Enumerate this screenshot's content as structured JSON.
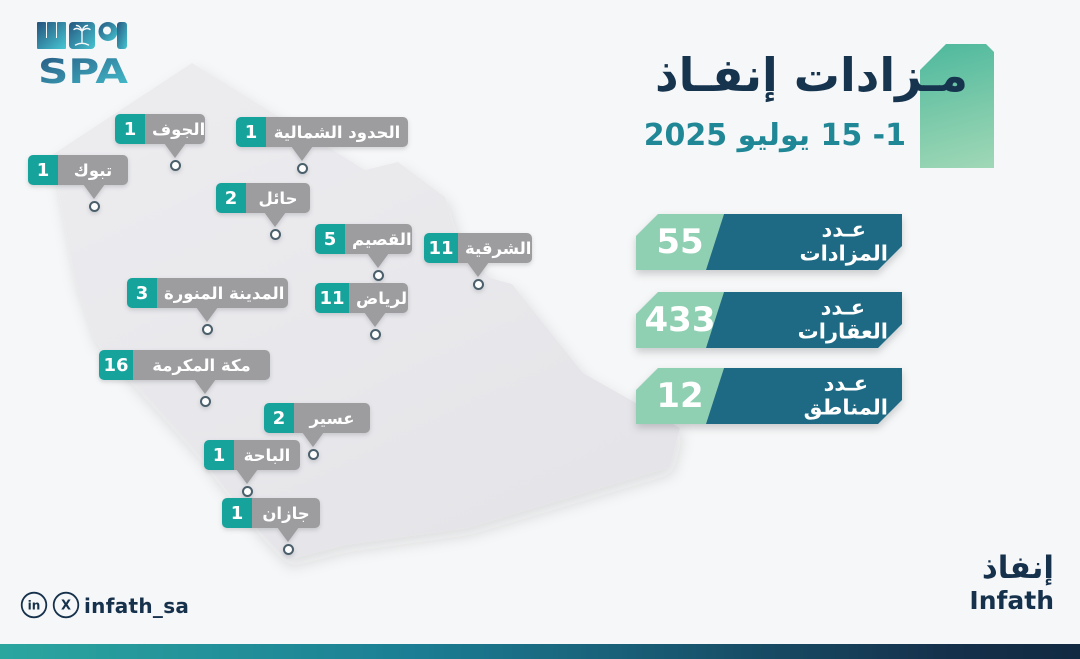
{
  "header": {
    "title": "مـزادات إنفـاذ",
    "date": "1- 15 يوليو 2025"
  },
  "spa_logo": {
    "latin": "SPA",
    "arabic": "واس"
  },
  "map": {
    "regions": [
      {
        "name": "الجوف",
        "value": "1"
      },
      {
        "name": "تبوك",
        "value": "1"
      },
      {
        "name": "الحدود الشمالية",
        "value": "1"
      },
      {
        "name": "حائل",
        "value": "2"
      },
      {
        "name": "القصيم",
        "value": "5"
      },
      {
        "name": "الشرقية",
        "value": "11"
      },
      {
        "name": "الرياض",
        "value": "11"
      },
      {
        "name": "المدينة المنورة",
        "value": "3"
      },
      {
        "name": "مكة المكرمة",
        "value": "16"
      },
      {
        "name": "عسير",
        "value": "2"
      },
      {
        "name": "الباحة",
        "value": "1"
      },
      {
        "name": "جازان",
        "value": "1"
      }
    ]
  },
  "stats": [
    {
      "value": "55",
      "line1": "عـدد",
      "line2": "المزادات"
    },
    {
      "value": "433",
      "line1": "عـدد",
      "line2": "العقارات"
    },
    {
      "value": "12",
      "line1": "عـدد",
      "line2": "المناطق"
    }
  ],
  "footer": {
    "handle": "infath_sa",
    "brand_ar": "إنفاذ",
    "brand_en": "Infath"
  },
  "colors": {
    "accent_teal": "#16a39c",
    "stat_teal": "#1e6a84",
    "stat_mint": "#8fd0b3",
    "navy": "#16314c",
    "date_teal": "#1f8795",
    "label_gray": "#9d9da0",
    "map_gray": "#e9e9ec"
  },
  "chart_data": {
    "type": "map",
    "title": "مـزادات إنفـاذ",
    "period": "1- 15 يوليو 2025",
    "region_values": {
      "الجوف": 1,
      "تبوك": 1,
      "الحدود الشمالية": 1,
      "حائل": 2,
      "القصيم": 5,
      "الشرقية": 11,
      "الرياض": 11,
      "المدينة المنورة": 3,
      "مكة المكرمة": 16,
      "عسير": 2,
      "الباحة": 1,
      "جازان": 1
    },
    "totals": [
      {
        "label": "عدد المزادات",
        "value": 55
      },
      {
        "label": "عدد العقارات",
        "value": 433
      },
      {
        "label": "عدد المناطق",
        "value": 12
      }
    ]
  }
}
